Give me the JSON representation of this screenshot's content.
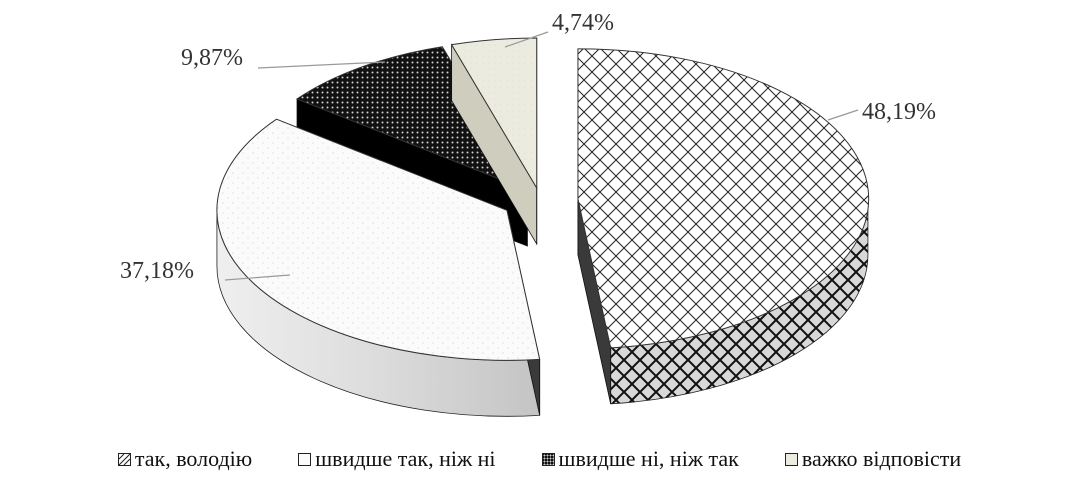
{
  "chart_data": {
    "type": "pie",
    "title": "",
    "series": [
      {
        "name": "так, володію",
        "value": 48.19,
        "label": "48,19%",
        "pattern": "diamond-hatch",
        "color": "#ffffff"
      },
      {
        "name": "швидше так, ніж ні",
        "value": 37.18,
        "label": "37,18%",
        "pattern": "light-dots",
        "color": "#fafafa"
      },
      {
        "name": "швидше ні, ніж так",
        "value": 9.87,
        "label": "9,87%",
        "pattern": "dark-dots",
        "color": "#111111"
      },
      {
        "name": "важко відповісти",
        "value": 4.74,
        "label": "4,74%",
        "pattern": "solid-beige",
        "color": "#ecebdf"
      }
    ],
    "legend_position": "bottom",
    "style": "3d-exploded-pie"
  }
}
